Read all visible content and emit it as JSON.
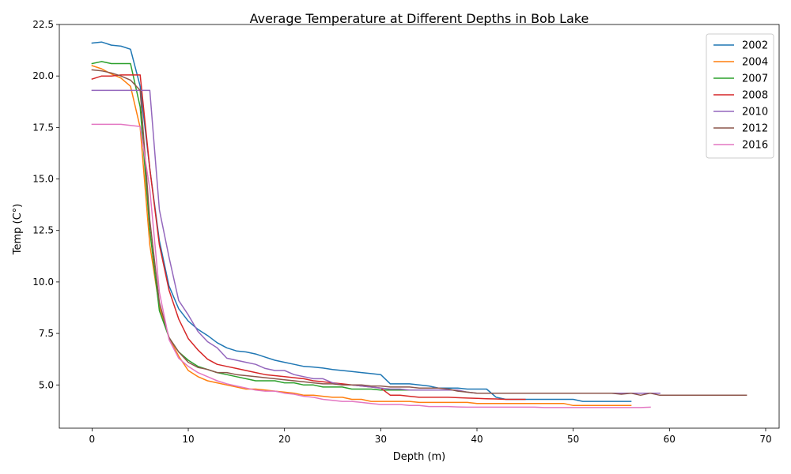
{
  "chart_data": {
    "type": "line",
    "title": "Average Temperature at Different Depths in Bob Lake",
    "xlabel": "Depth (m)",
    "ylabel": "Temp (C°)",
    "xlim": [
      -3.4,
      71.4
    ],
    "ylim": [
      2.9,
      22.5
    ],
    "xticks": [
      0,
      10,
      20,
      30,
      40,
      50,
      60,
      70
    ],
    "xtick_labels": [
      "0",
      "10",
      "20",
      "30",
      "40",
      "50",
      "60",
      "70"
    ],
    "yticks": [
      5.0,
      7.5,
      10.0,
      12.5,
      15.0,
      17.5,
      20.0,
      22.5
    ],
    "ytick_labels": [
      "5.0",
      "7.5",
      "10.0",
      "12.5",
      "15.0",
      "17.5",
      "20.0",
      "22.5"
    ],
    "grid": false,
    "legend_position": "top-right",
    "series": [
      {
        "name": "2002",
        "color": "#1f77b4",
        "x": [
          0,
          1,
          2,
          3,
          4,
          5,
          6,
          7,
          8,
          9,
          10,
          11,
          12,
          13,
          14,
          15,
          16,
          17,
          18,
          19,
          20,
          21,
          22,
          23,
          24,
          25,
          26,
          27,
          28,
          29,
          30,
          31,
          32,
          33,
          34,
          35,
          36,
          37,
          38,
          39,
          40,
          41,
          42,
          43,
          44,
          45,
          46,
          47,
          48,
          49,
          50,
          51,
          52,
          53,
          54,
          55,
          56
        ],
        "y": [
          21.6,
          21.65,
          21.5,
          21.45,
          21.3,
          19.5,
          15.5,
          12.0,
          9.8,
          8.7,
          8.1,
          7.7,
          7.4,
          7.05,
          6.8,
          6.65,
          6.6,
          6.5,
          6.35,
          6.2,
          6.1,
          6.0,
          5.9,
          5.87,
          5.82,
          5.75,
          5.7,
          5.65,
          5.6,
          5.55,
          5.5,
          5.05,
          5.05,
          5.05,
          5.0,
          4.95,
          4.85,
          4.85,
          4.85,
          4.8,
          4.8,
          4.8,
          4.4,
          4.3,
          4.3,
          4.3,
          4.3,
          4.3,
          4.3,
          4.3,
          4.3,
          4.2,
          4.2,
          4.2,
          4.2,
          4.2,
          4.2
        ]
      },
      {
        "name": "2004",
        "color": "#ff7f0e",
        "x": [
          0,
          1,
          2,
          3,
          4,
          5,
          6,
          7,
          8,
          9,
          10,
          11,
          12,
          13,
          14,
          15,
          16,
          17,
          18,
          19,
          20,
          21,
          22,
          23,
          24,
          25,
          26,
          27,
          28,
          29,
          30,
          31,
          32,
          33,
          34,
          35,
          36,
          37,
          38,
          39,
          40,
          41,
          42,
          43,
          44,
          45,
          46,
          47,
          48,
          49,
          50,
          51,
          52,
          53,
          54,
          55,
          56
        ],
        "y": [
          20.5,
          20.35,
          20.1,
          19.9,
          19.5,
          17.5,
          11.8,
          8.8,
          7.3,
          6.4,
          5.7,
          5.4,
          5.2,
          5.1,
          5.0,
          4.9,
          4.8,
          4.8,
          4.75,
          4.7,
          4.65,
          4.6,
          4.5,
          4.5,
          4.45,
          4.4,
          4.4,
          4.3,
          4.3,
          4.2,
          4.2,
          4.2,
          4.2,
          4.2,
          4.15,
          4.15,
          4.15,
          4.15,
          4.15,
          4.15,
          4.1,
          4.1,
          4.1,
          4.1,
          4.1,
          4.1,
          4.1,
          4.1,
          4.1,
          4.1,
          4.0,
          4.0,
          4.0,
          4.0,
          4.0,
          4.0,
          4.0
        ]
      },
      {
        "name": "2007",
        "color": "#2ca02c",
        "x": [
          0,
          1,
          2,
          3,
          4,
          5,
          6,
          7,
          8,
          9,
          10,
          11,
          12,
          13,
          14,
          15,
          16,
          17,
          18,
          19,
          20,
          21,
          22,
          23,
          24,
          25,
          26,
          27,
          28,
          29,
          30,
          31,
          32,
          33
        ],
        "y": [
          20.6,
          20.7,
          20.6,
          20.6,
          20.6,
          18.5,
          12.5,
          8.6,
          7.3,
          6.6,
          6.2,
          5.9,
          5.75,
          5.6,
          5.5,
          5.4,
          5.3,
          5.2,
          5.2,
          5.2,
          5.1,
          5.1,
          5.0,
          5.0,
          4.9,
          4.9,
          4.9,
          4.8,
          4.8,
          4.8,
          4.75,
          4.75,
          4.75,
          4.75
        ]
      },
      {
        "name": "2008",
        "color": "#d62728",
        "x": [
          0,
          1,
          2,
          3,
          4,
          5,
          6,
          7,
          8,
          9,
          10,
          11,
          12,
          13,
          14,
          15,
          16,
          17,
          18,
          19,
          20,
          21,
          22,
          23,
          24,
          25,
          26,
          27,
          28,
          29,
          30,
          31,
          32,
          33,
          34,
          35,
          36,
          37,
          38,
          39,
          40,
          41,
          42,
          43,
          44,
          45
        ],
        "y": [
          19.85,
          20.0,
          20.0,
          20.05,
          20.05,
          20.05,
          15.5,
          11.8,
          9.6,
          8.2,
          7.25,
          6.7,
          6.25,
          6.0,
          5.9,
          5.8,
          5.7,
          5.6,
          5.5,
          5.45,
          5.4,
          5.35,
          5.3,
          5.2,
          5.15,
          5.1,
          5.05,
          5.0,
          4.95,
          4.9,
          4.85,
          4.5,
          4.5,
          4.45,
          4.4,
          4.4,
          4.4,
          4.4,
          4.38,
          4.36,
          4.35,
          4.33,
          4.32,
          4.3,
          4.3,
          4.3
        ]
      },
      {
        "name": "2010",
        "color": "#9467bd",
        "x": [
          0,
          1,
          2,
          3,
          4,
          5,
          6,
          7,
          8,
          9,
          10,
          11,
          12,
          13,
          14,
          15,
          16,
          17,
          18,
          19,
          20,
          21,
          22,
          23,
          24,
          25,
          26,
          27,
          28,
          29,
          30,
          31,
          32,
          33,
          34,
          35,
          36,
          37,
          38,
          39,
          40,
          41,
          42,
          43,
          44,
          45,
          46,
          47,
          48,
          49,
          50,
          51,
          52,
          53,
          54,
          55,
          56,
          57,
          58,
          59
        ],
        "y": [
          19.3,
          19.3,
          19.3,
          19.3,
          19.3,
          19.3,
          19.3,
          13.5,
          11.2,
          9.1,
          8.4,
          7.6,
          7.1,
          6.8,
          6.3,
          6.2,
          6.1,
          6.0,
          5.8,
          5.7,
          5.7,
          5.5,
          5.4,
          5.3,
          5.3,
          5.1,
          5.0,
          5.0,
          4.95,
          4.9,
          4.85,
          4.8,
          4.8,
          4.75,
          4.75,
          4.75,
          4.75,
          4.75,
          4.75,
          4.65,
          4.6,
          4.6,
          4.6,
          4.6,
          4.6,
          4.6,
          4.6,
          4.6,
          4.6,
          4.6,
          4.6,
          4.6,
          4.6,
          4.6,
          4.6,
          4.6,
          4.6,
          4.6,
          4.6,
          4.6
        ]
      },
      {
        "name": "2012",
        "color": "#8c564b",
        "x": [
          0,
          1,
          2,
          3,
          4,
          5,
          6,
          7,
          8,
          9,
          10,
          11,
          12,
          13,
          14,
          15,
          16,
          17,
          18,
          19,
          20,
          21,
          22,
          23,
          24,
          25,
          26,
          27,
          28,
          29,
          30,
          31,
          32,
          33,
          34,
          35,
          36,
          37,
          38,
          39,
          40,
          41,
          42,
          43,
          44,
          45,
          46,
          47,
          48,
          49,
          50,
          51,
          52,
          53,
          54,
          55,
          56,
          57,
          58,
          59,
          60,
          61,
          62,
          63,
          64,
          65,
          66,
          67,
          68
        ],
        "y": [
          20.3,
          20.25,
          20.15,
          20.0,
          19.8,
          19.3,
          13.0,
          9.0,
          7.3,
          6.6,
          6.1,
          5.85,
          5.75,
          5.6,
          5.6,
          5.5,
          5.45,
          5.4,
          5.35,
          5.3,
          5.25,
          5.2,
          5.15,
          5.1,
          5.05,
          5.05,
          5.0,
          5.0,
          5.0,
          4.95,
          4.95,
          4.9,
          4.9,
          4.9,
          4.85,
          4.85,
          4.85,
          4.8,
          4.7,
          4.65,
          4.6,
          4.6,
          4.6,
          4.6,
          4.6,
          4.6,
          4.6,
          4.6,
          4.6,
          4.6,
          4.6,
          4.6,
          4.6,
          4.6,
          4.6,
          4.55,
          4.6,
          4.5,
          4.6,
          4.5,
          4.5,
          4.5,
          4.5,
          4.5,
          4.5,
          4.5,
          4.5,
          4.5,
          4.5
        ]
      },
      {
        "name": "2016",
        "color": "#e377c2",
        "x": [
          0,
          1,
          2,
          3,
          4,
          5,
          6,
          7,
          8,
          9,
          10,
          11,
          12,
          13,
          14,
          15,
          16,
          17,
          18,
          19,
          20,
          21,
          22,
          23,
          24,
          25,
          26,
          27,
          28,
          29,
          30,
          31,
          32,
          33,
          34,
          35,
          36,
          37,
          38,
          39,
          40,
          41,
          42,
          43,
          44,
          45,
          46,
          47,
          48,
          49,
          50,
          51,
          52,
          53,
          54,
          55,
          56,
          57,
          58
        ],
        "y": [
          17.65,
          17.65,
          17.65,
          17.65,
          17.6,
          17.55,
          14.5,
          9.5,
          7.2,
          6.3,
          5.9,
          5.6,
          5.4,
          5.2,
          5.05,
          4.95,
          4.85,
          4.75,
          4.7,
          4.7,
          4.6,
          4.55,
          4.45,
          4.4,
          4.3,
          4.25,
          4.2,
          4.2,
          4.15,
          4.1,
          4.05,
          4.05,
          4.05,
          4.0,
          4.0,
          3.95,
          3.95,
          3.95,
          3.93,
          3.92,
          3.92,
          3.92,
          3.92,
          3.92,
          3.92,
          3.92,
          3.92,
          3.9,
          3.9,
          3.9,
          3.9,
          3.9,
          3.9,
          3.9,
          3.9,
          3.9,
          3.9,
          3.9,
          3.92
        ]
      }
    ]
  }
}
